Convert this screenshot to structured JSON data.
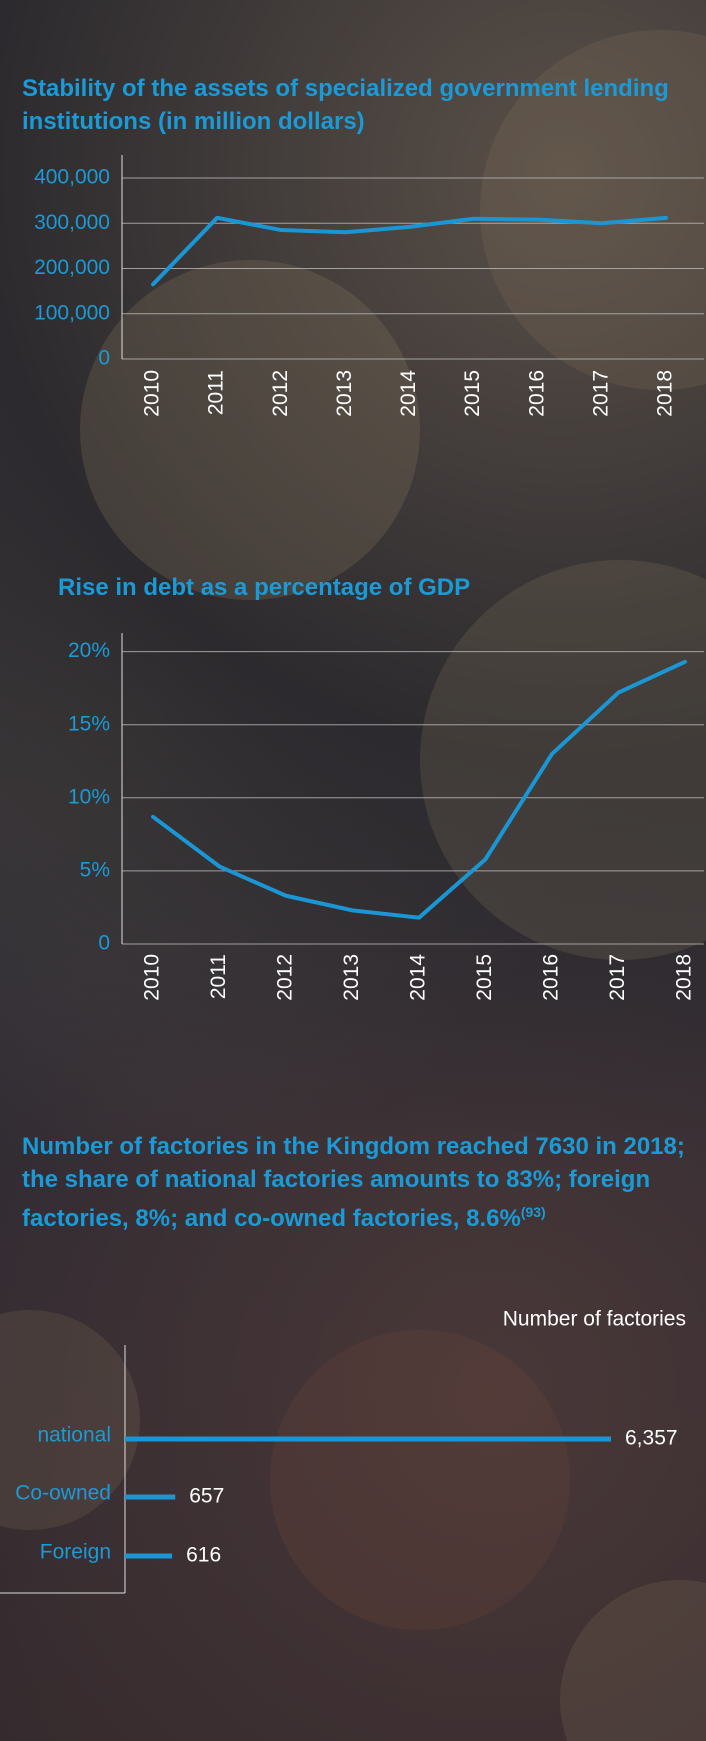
{
  "chart_data": [
    {
      "type": "line",
      "title": "Stability of the assets of specialized government lending institutions (in million dollars)",
      "categories": [
        "2010",
        "2011",
        "2012",
        "2013",
        "2014",
        "2015",
        "2016",
        "2017",
        "2018"
      ],
      "values": [
        165000,
        312000,
        285000,
        280000,
        292000,
        310000,
        308000,
        300000,
        312000
      ],
      "color": "#1a96d4",
      "ylim": [
        0,
        400000
      ],
      "yticks": [
        0,
        {
          "value": 100000,
          "label": "100,000"
        },
        {
          "value": 200000,
          "label": "200,000"
        },
        {
          "value": 300000,
          "label": "300,000"
        },
        {
          "value": 400000,
          "label": "400,000"
        }
      ],
      "grid": true
    },
    {
      "type": "line",
      "title": "Rise in debt as a percentage of GDP",
      "categories": [
        "2010",
        "2011",
        "2012",
        "2013",
        "2014",
        "2015",
        "2016",
        "2017",
        "2018"
      ],
      "values": [
        8.7,
        5.3,
        3.3,
        2.3,
        1.8,
        5.8,
        13.0,
        17.2,
        19.3
      ],
      "color": "#1a96d4",
      "ylim": [
        0,
        21
      ],
      "yticks": [
        0,
        {
          "value": 5,
          "label": "5%"
        },
        {
          "value": 10,
          "label": "10%"
        },
        {
          "value": 15,
          "label": "15%"
        },
        {
          "value": 20,
          "label": "20%"
        }
      ],
      "grid": true
    },
    {
      "type": "hbar",
      "title": "Number of factories in the Kingdom reached 7630 in 2018; the share of national factories amounts to 83%; foreign factories, 8%; and co-owned factories, 8.6%",
      "title_reference": "(93)",
      "axis_label": "Number of factories",
      "categories": [
        "national",
        "Co-owned",
        "Foreign"
      ],
      "values": [
        6357,
        657,
        616
      ],
      "value_labels": [
        "6,357",
        "657",
        "616"
      ],
      "color": "#1a96d4"
    }
  ]
}
